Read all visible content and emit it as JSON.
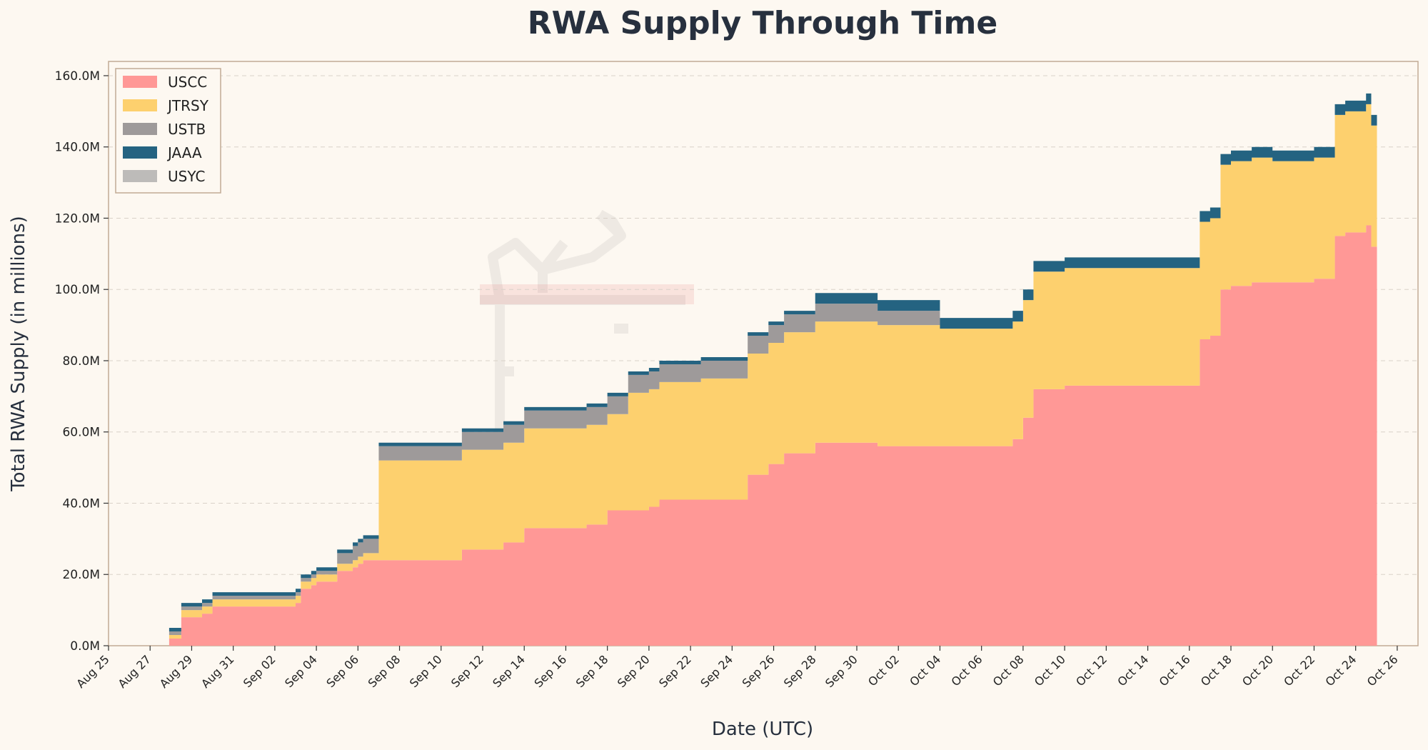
{
  "chart_data": {
    "type": "area",
    "stacked": true,
    "title": "RWA Supply Through Time",
    "xlabel": "Date (UTC)",
    "ylabel": "Total RWA Supply (in millions)",
    "x_axis_type": "date",
    "xlim": [
      "2025-08-25",
      "2025-10-27"
    ],
    "ylim": [
      0,
      164
    ],
    "y_ticks": [
      0,
      20,
      40,
      60,
      80,
      100,
      120,
      140,
      160
    ],
    "y_tick_labels": [
      "0.0M",
      "20.0M",
      "40.0M",
      "60.0M",
      "80.0M",
      "100.0M",
      "120.0M",
      "140.0M",
      "160.0M"
    ],
    "x_ticks": [
      "2025-08-25",
      "2025-08-27",
      "2025-08-29",
      "2025-08-31",
      "2025-09-02",
      "2025-09-04",
      "2025-09-06",
      "2025-09-08",
      "2025-09-10",
      "2025-09-12",
      "2025-09-14",
      "2025-09-16",
      "2025-09-18",
      "2025-09-20",
      "2025-09-22",
      "2025-09-24",
      "2025-09-26",
      "2025-09-28",
      "2025-09-30",
      "2025-10-02",
      "2025-10-04",
      "2025-10-06",
      "2025-10-08",
      "2025-10-10",
      "2025-10-12",
      "2025-10-14",
      "2025-10-16",
      "2025-10-18",
      "2025-10-20",
      "2025-10-22",
      "2025-10-24",
      "2025-10-26"
    ],
    "x_tick_labels": [
      "Aug 25",
      "Aug 27",
      "Aug 29",
      "Aug 31",
      "Sep 02",
      "Sep 04",
      "Sep 06",
      "Sep 08",
      "Sep 10",
      "Sep 12",
      "Sep 14",
      "Sep 16",
      "Sep 18",
      "Sep 20",
      "Sep 22",
      "Sep 24",
      "Sep 26",
      "Sep 28",
      "Sep 30",
      "Oct 02",
      "Oct 04",
      "Oct 06",
      "Oct 08",
      "Oct 10",
      "Oct 12",
      "Oct 14",
      "Oct 16",
      "Oct 18",
      "Oct 20",
      "Oct 22",
      "Oct 24",
      "Oct 26"
    ],
    "grid": "horizontal dashed",
    "legend_position": "top-left",
    "x": [
      "2025-08-27 22:00",
      "2025-08-28 12:00",
      "2025-08-29 12:00",
      "2025-08-30 00:00",
      "2025-08-30 06:00",
      "2025-08-30 18:00",
      "2025-08-31 12:00",
      "2025-09-01 12:00",
      "2025-09-02 12:00",
      "2025-09-03 00:00",
      "2025-09-03 06:00",
      "2025-09-03 18:00",
      "2025-09-04 00:00",
      "2025-09-04 12:00",
      "2025-09-05 00:00",
      "2025-09-05 12:00",
      "2025-09-05 18:00",
      "2025-09-06 00:00",
      "2025-09-06 06:00",
      "2025-09-07 00:00",
      "2025-09-08 00:00",
      "2025-09-09 00:00",
      "2025-09-10 00:00",
      "2025-09-11 00:00",
      "2025-09-12 00:00",
      "2025-09-12 12:00",
      "2025-09-13 00:00",
      "2025-09-13 12:00",
      "2025-09-14 00:00",
      "2025-09-15 00:00",
      "2025-09-16 00:00",
      "2025-09-16 12:00",
      "2025-09-17 00:00",
      "2025-09-18 00:00",
      "2025-09-18 12:00",
      "2025-09-19 00:00",
      "2025-09-20 00:00",
      "2025-09-20 12:00",
      "2025-09-21 12:00",
      "2025-09-22 12:00",
      "2025-09-23 12:00",
      "2025-09-24 00:00",
      "2025-09-24 18:00",
      "2025-09-25 00:00",
      "2025-09-25 18:00",
      "2025-09-26 00:00",
      "2025-09-26 12:00",
      "2025-09-27 00:00",
      "2025-09-28 00:00",
      "2025-09-29 00:00",
      "2025-09-30 00:00",
      "2025-10-01 00:00",
      "2025-10-02 00:00",
      "2025-10-03 00:00",
      "2025-10-04 00:00",
      "2025-10-05 00:00",
      "2025-10-06 00:00",
      "2025-10-07 00:00",
      "2025-10-07 12:00",
      "2025-10-08 00:00",
      "2025-10-08 12:00",
      "2025-10-09 00:00",
      "2025-10-10 00:00",
      "2025-10-11 00:00",
      "2025-10-12 00:00",
      "2025-10-13 00:00",
      "2025-10-14 00:00",
      "2025-10-15 00:00",
      "2025-10-15 12:00",
      "2025-10-16 12:00",
      "2025-10-17 00:00",
      "2025-10-17 12:00",
      "2025-10-18 00:00",
      "2025-10-19 00:00",
      "2025-10-20 00:00",
      "2025-10-21 00:00",
      "2025-10-21 12:00",
      "2025-10-22 00:00",
      "2025-10-22 12:00",
      "2025-10-23 00:00",
      "2025-10-23 12:00",
      "2025-10-24 00:00",
      "2025-10-24 12:00",
      "2025-10-24 18:00"
    ],
    "series": [
      {
        "name": "USCC",
        "color": "#ff9896",
        "values": [
          2,
          8,
          9,
          11,
          11,
          11,
          11,
          11,
          11,
          12,
          16,
          17,
          18,
          18,
          21,
          21,
          22,
          23,
          24,
          24,
          24,
          24,
          24,
          27,
          27,
          27,
          29,
          29,
          33,
          33,
          33,
          33,
          34,
          38,
          38,
          38,
          39,
          41,
          41,
          41,
          41,
          41,
          48,
          48,
          51,
          51,
          54,
          54,
          57,
          57,
          57,
          56,
          56,
          56,
          56,
          56,
          56,
          56,
          58,
          64,
          72,
          72,
          73,
          73,
          73,
          73,
          73,
          73,
          73,
          86,
          87,
          100,
          101,
          102,
          102,
          102,
          102,
          103,
          103,
          115,
          116,
          116,
          118,
          112
        ]
      },
      {
        "name": "JTRSY",
        "color": "#fdd06e",
        "values": [
          1,
          2,
          2,
          2,
          2,
          2,
          2,
          2,
          2,
          2,
          2,
          2,
          2,
          2,
          2,
          2,
          2,
          2,
          2,
          28,
          28,
          28,
          28,
          28,
          28,
          28,
          28,
          28,
          28,
          28,
          28,
          28,
          28,
          27,
          27,
          33,
          33,
          33,
          33,
          34,
          34,
          34,
          34,
          34,
          34,
          34,
          34,
          34,
          34,
          34,
          34,
          34,
          34,
          34,
          33,
          33,
          33,
          33,
          33,
          33,
          33,
          33,
          33,
          33,
          33,
          33,
          33,
          33,
          33,
          33,
          33,
          35,
          35,
          35,
          34,
          34,
          34,
          34,
          34,
          34,
          34,
          34,
          34,
          34
        ]
      },
      {
        "name": "USTB",
        "color": "#9e9a9a",
        "values": [
          1,
          1,
          1,
          1,
          1,
          1,
          1,
          1,
          1,
          1,
          1,
          1,
          1,
          1,
          3,
          3,
          4,
          4,
          4,
          4,
          4,
          4,
          4,
          5,
          5,
          5,
          5,
          5,
          5,
          5,
          5,
          5,
          5,
          5,
          5,
          5,
          5,
          5,
          5,
          5,
          5,
          5,
          5,
          5,
          5,
          5,
          5,
          5,
          5,
          5,
          5,
          4,
          4,
          4,
          0,
          0,
          0,
          0,
          0,
          0,
          0,
          0,
          0,
          0,
          0,
          0,
          0,
          0,
          0,
          0,
          0,
          0,
          0,
          0,
          0,
          0,
          0,
          0,
          0,
          0,
          0,
          0,
          0,
          0
        ]
      },
      {
        "name": "JAAA",
        "color": "#246381",
        "values": [
          1,
          1,
          1,
          1,
          1,
          1,
          1,
          1,
          1,
          1,
          1,
          1,
          1,
          1,
          1,
          1,
          1,
          1,
          1,
          1,
          1,
          1,
          1,
          1,
          1,
          1,
          1,
          1,
          1,
          1,
          1,
          1,
          1,
          1,
          1,
          1,
          1,
          1,
          1,
          1,
          1,
          1,
          1,
          1,
          1,
          1,
          1,
          1,
          3,
          3,
          3,
          3,
          3,
          3,
          3,
          3,
          3,
          3,
          3,
          3,
          3,
          3,
          3,
          3,
          3,
          3,
          3,
          3,
          3,
          3,
          3,
          3,
          3,
          3,
          3,
          3,
          3,
          3,
          3,
          3,
          3,
          3,
          3,
          3
        ]
      },
      {
        "name": "USYC",
        "color": "#bdbbb9",
        "values": [
          0,
          0,
          0,
          0,
          0,
          0,
          0,
          0,
          0,
          0,
          0,
          0,
          0,
          0,
          0,
          0,
          0,
          0,
          0,
          0,
          0,
          0,
          0,
          0,
          0,
          0,
          0,
          0,
          0,
          0,
          0,
          0,
          0,
          0,
          0,
          0,
          0,
          0,
          0,
          0,
          0,
          0,
          0,
          0,
          0,
          0,
          0,
          0,
          0,
          0,
          0,
          0,
          0,
          0,
          0,
          0,
          0,
          0,
          0,
          0,
          0,
          0,
          0,
          0,
          0,
          0,
          0,
          0,
          0,
          0,
          0,
          0,
          0,
          0,
          0,
          0,
          0,
          0,
          0,
          0,
          0,
          0,
          0,
          0
        ]
      }
    ]
  }
}
